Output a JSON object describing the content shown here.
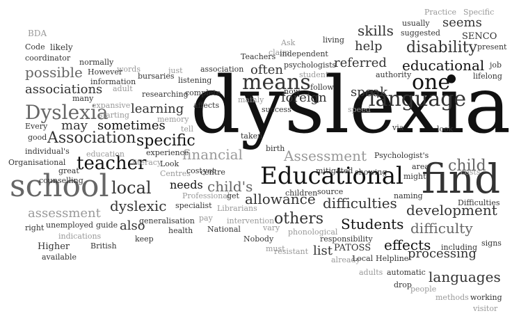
{
  "colors": {
    "background": "#ffffff",
    "black": "#111111",
    "dark": "#333333",
    "mid": "#666666",
    "light": "#999999",
    "pale": "#bbbbbb"
  },
  "words": [
    "dyslexia",
    "find",
    "school",
    "Educational",
    "teacher",
    "means",
    "one",
    "language",
    "Dyslexia",
    "local",
    "specific",
    "Association",
    "child",
    "others",
    "Students",
    "child's",
    "allowance",
    "difficulties",
    "difficulty",
    "development",
    "assessment",
    "dyslexic",
    "Assessment",
    "associations",
    "possible",
    "learning",
    "may",
    "sometimes",
    "needs",
    "financial",
    "skills",
    "help",
    "disability",
    "referred",
    "educational",
    "often",
    "speak",
    "foreign",
    "effects",
    "processing",
    "languages",
    "list",
    "PATOSS",
    "seems",
    "BDA",
    "Code",
    "coordinator",
    "likely",
    "normally",
    "words",
    "However",
    "information",
    "many",
    "adult",
    "bursaries",
    "expansive",
    "starting",
    "Every",
    "good",
    "individual's",
    "Organisational",
    "great",
    "counselling",
    "right",
    "unemployed",
    "guide",
    "indications",
    "Higher",
    "British",
    "available",
    "also",
    "keep",
    "health",
    "generalisation",
    "specialist",
    "pay",
    "Professional",
    "get",
    "National",
    "vary",
    "Nobody",
    "must",
    "resistant",
    "phonological",
    "already",
    "Local",
    "adults",
    "automatic",
    "drop",
    "people",
    "methods",
    "working",
    "visitor",
    "signs",
    "including",
    "Helpline",
    "Difficulties",
    "naming",
    "source",
    "children",
    "mitigated",
    "showing",
    "Psychologist's",
    "area",
    "might",
    "costs",
    "centre",
    "birth",
    "taken",
    "via",
    "look",
    "speed",
    "success",
    "mainly",
    "affects",
    "tell",
    "memory",
    "researching",
    "complete",
    "listening",
    "just",
    "association",
    "Teachers",
    "claim",
    "Ask",
    "independent",
    "living",
    "psychologists",
    "student",
    "now",
    "follow",
    "authority",
    "usually",
    "suggested",
    "Practice",
    "Specific",
    "SENCO",
    "present",
    "job",
    "lifelong",
    "experience",
    "education",
    "literacy",
    "Look",
    "Centres",
    "cost",
    "yet",
    "Librarians",
    "intervention",
    "responsibility"
  ]
}
